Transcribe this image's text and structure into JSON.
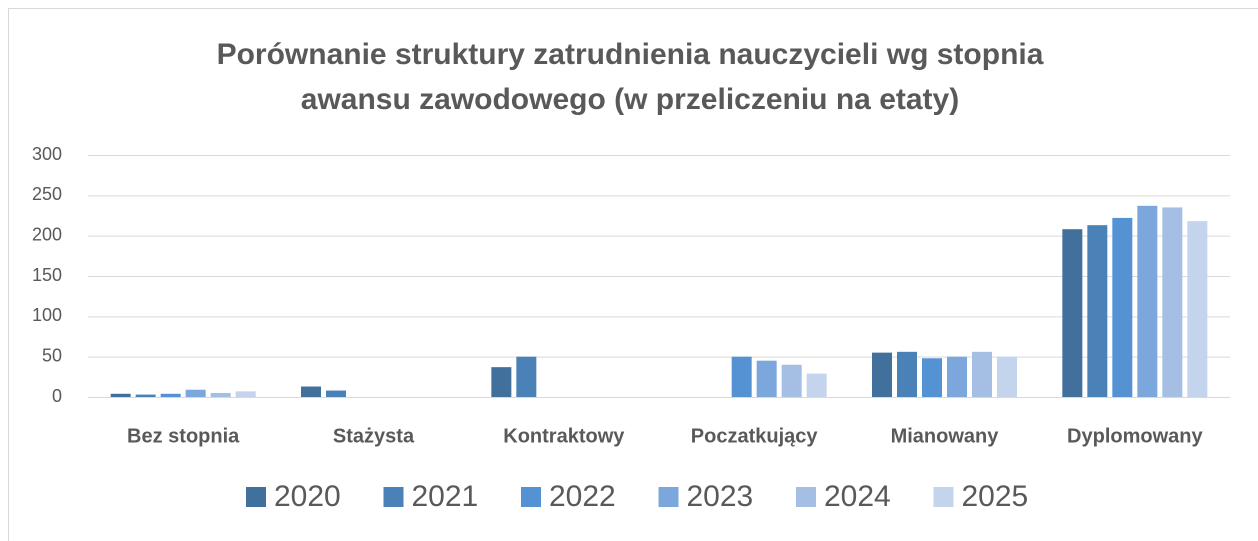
{
  "chart_data": {
    "type": "bar",
    "title": "Porównanie struktury zatrudnienia nauczycieli wg stopnia awansu zawodowego (w przeliczeniu na etaty)",
    "categories": [
      "Bez stopnia",
      "Stażysta",
      "Kontraktowy",
      "Poczatkujący",
      "Mianowany",
      "Dyplomowany"
    ],
    "series": [
      {
        "name": "2020",
        "color": "#41709c",
        "values": [
          4,
          13,
          37,
          0,
          55,
          208
        ]
      },
      {
        "name": "2021",
        "color": "#4a82b8",
        "values": [
          3,
          8,
          50,
          0,
          56,
          213
        ]
      },
      {
        "name": "2022",
        "color": "#5592d3",
        "values": [
          4,
          0,
          0,
          50,
          48,
          222
        ]
      },
      {
        "name": "2023",
        "color": "#7ba7dc",
        "values": [
          9,
          0,
          0,
          45,
          50,
          237
        ]
      },
      {
        "name": "2024",
        "color": "#a4bfe3",
        "values": [
          5,
          0,
          0,
          40,
          56,
          235
        ]
      },
      {
        "name": "2025",
        "color": "#c4d4ec",
        "values": [
          7,
          0,
          0,
          29,
          50,
          218
        ]
      }
    ],
    "ylim": [
      0,
      300
    ],
    "yticks": [
      0,
      50,
      100,
      150,
      200,
      250,
      300
    ],
    "grid": true,
    "legend": "bottom"
  }
}
